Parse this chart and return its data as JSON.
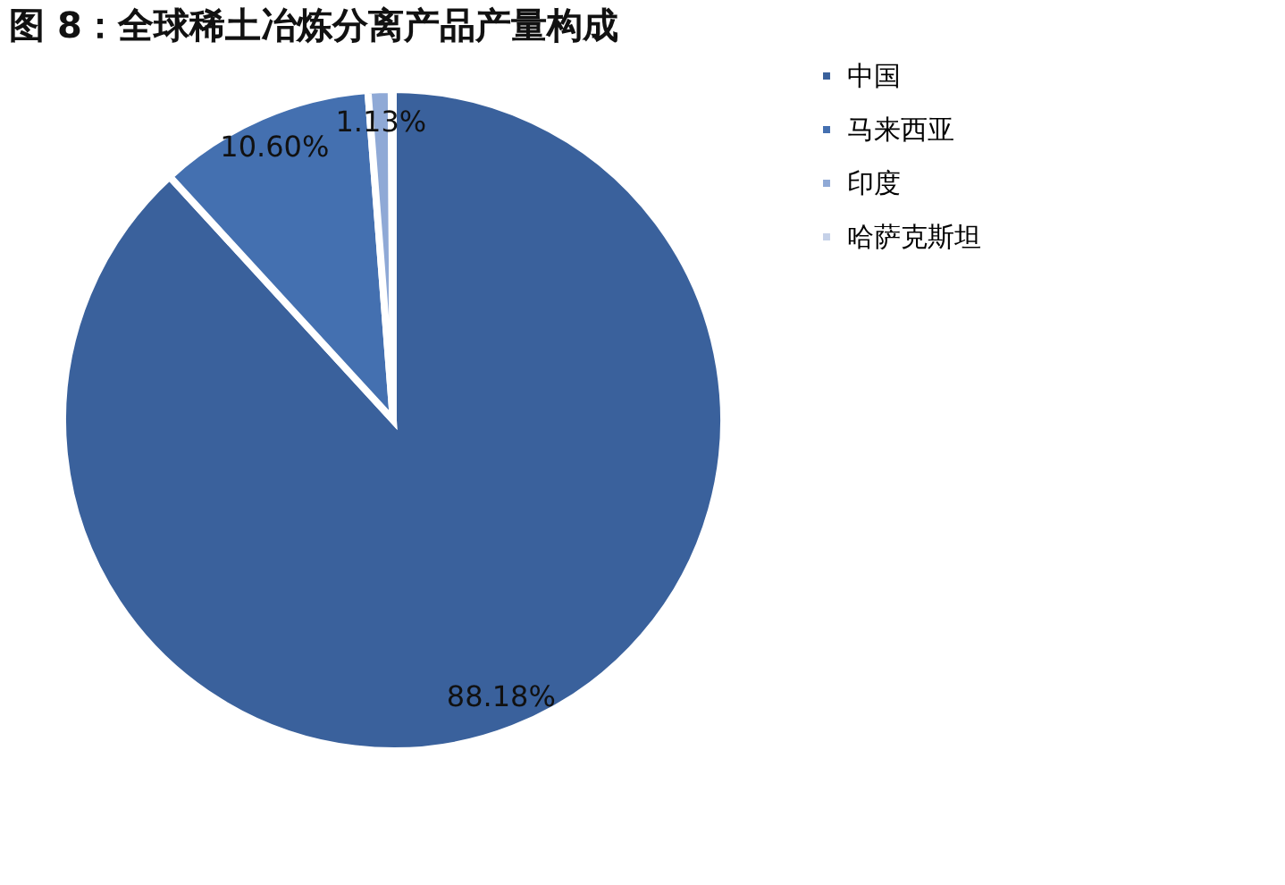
{
  "chart_data": {
    "type": "pie",
    "title": "图 8：全球稀土冶炼分离产品产量构成",
    "categories": [
      "中国",
      "马来西亚",
      "印度",
      "哈萨克斯坦"
    ],
    "values": [
      88.18,
      10.6,
      1.13,
      0.09
    ],
    "value_labels": [
      "88.18%",
      "10.60%",
      "1.13%",
      null
    ],
    "colors": [
      "#3a619c",
      "#4470b0",
      "#8fa9d6",
      "#c5d1e8"
    ],
    "legend": "right"
  }
}
